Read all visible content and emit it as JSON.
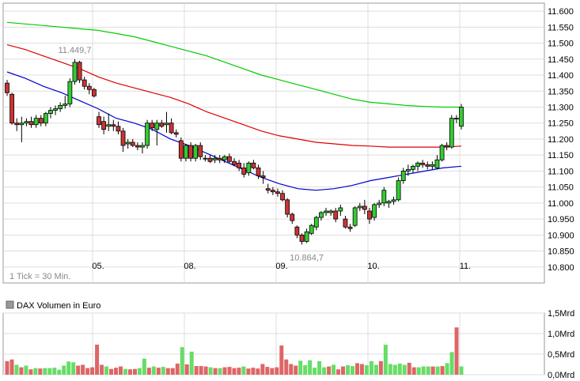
{
  "chart_data": [
    {
      "type": "candlestick",
      "interval_note": "1 Tick = 30 Min.",
      "x_labels": [
        "05.",
        "08.",
        "09.",
        "10.",
        "11."
      ],
      "ylim": [
        10750,
        11625
      ],
      "y_ticks": [
        "11.600",
        "11.550",
        "11.500",
        "11.450",
        "11.400",
        "11.350",
        "11.300",
        "11.250",
        "11.200",
        "11.150",
        "11.100",
        "11.050",
        "11.000",
        "10.950",
        "10.900",
        "10.850",
        "10.800"
      ],
      "y_tick_values": [
        11600,
        11550,
        11500,
        11450,
        11400,
        11350,
        11300,
        11250,
        11200,
        11150,
        11100,
        11050,
        11000,
        10950,
        10900,
        10850,
        10800
      ],
      "grid": true,
      "annotations": [
        {
          "text": "11.449,7",
          "bar": 14,
          "value": 11449.7,
          "position": "above"
        },
        {
          "text": "10.864,7",
          "bar": 62,
          "value": 10864.7,
          "position": "below"
        }
      ],
      "candles": [
        [
          11375,
          11385,
          11335,
          11345
        ],
        [
          11340,
          11345,
          11245,
          11250
        ],
        [
          11250,
          11265,
          11225,
          11245
        ],
        [
          11245,
          11270,
          11190,
          11250
        ],
        [
          11250,
          11265,
          11240,
          11255
        ],
        [
          11255,
          11270,
          11235,
          11245
        ],
        [
          11245,
          11275,
          11235,
          11265
        ],
        [
          11265,
          11275,
          11240,
          11250
        ],
        [
          11250,
          11285,
          11240,
          11280
        ],
        [
          11280,
          11300,
          11265,
          11290
        ],
        [
          11290,
          11305,
          11275,
          11295
        ],
        [
          11295,
          11315,
          11285,
          11305
        ],
        [
          11305,
          11335,
          11295,
          11310
        ],
        [
          11310,
          11390,
          11300,
          11380
        ],
        [
          11380,
          11450,
          11370,
          11440
        ],
        [
          11440,
          11445,
          11375,
          11385
        ],
        [
          11385,
          11395,
          11355,
          11365
        ],
        [
          11365,
          11375,
          11340,
          11355
        ],
        [
          11355,
          11360,
          11330,
          11335
        ],
        [
          11270,
          11285,
          11235,
          11245
        ],
        [
          11255,
          11270,
          11215,
          11230
        ],
        [
          11240,
          11280,
          11225,
          11245
        ],
        [
          11245,
          11260,
          11225,
          11240
        ],
        [
          11240,
          11255,
          11215,
          11225
        ],
        [
          11225,
          11235,
          11160,
          11180
        ],
        [
          11185,
          11200,
          11170,
          11190
        ],
        [
          11190,
          11200,
          11175,
          11180
        ],
        [
          11180,
          11190,
          11165,
          11175
        ],
        [
          11175,
          11190,
          11155,
          11180
        ],
        [
          11180,
          11260,
          11170,
          11250
        ],
        [
          11250,
          11260,
          11225,
          11235
        ],
        [
          11230,
          11260,
          11180,
          11250
        ],
        [
          11250,
          11260,
          11235,
          11240
        ],
        [
          11245,
          11285,
          11220,
          11250
        ],
        [
          11250,
          11265,
          11215,
          11220
        ],
        [
          11220,
          11230,
          11205,
          11215
        ],
        [
          11195,
          11205,
          11130,
          11140
        ],
        [
          11140,
          11185,
          11130,
          11180
        ],
        [
          11180,
          11190,
          11130,
          11140
        ],
        [
          11140,
          11185,
          11130,
          11180
        ],
        [
          11180,
          11190,
          11135,
          11145
        ],
        [
          11140,
          11150,
          11130,
          11140
        ],
        [
          11140,
          11150,
          11125,
          11130
        ],
        [
          11135,
          11150,
          11125,
          11140
        ],
        [
          11140,
          11150,
          11125,
          11135
        ],
        [
          11135,
          11150,
          11125,
          11145
        ],
        [
          11145,
          11155,
          11125,
          11130
        ],
        [
          11130,
          11140,
          11115,
          11120
        ],
        [
          11125,
          11135,
          11100,
          11110
        ],
        [
          11110,
          11125,
          11080,
          11090
        ],
        [
          11095,
          11130,
          11085,
          11125
        ],
        [
          11125,
          11135,
          11105,
          11110
        ],
        [
          11110,
          11120,
          11075,
          11085
        ],
        [
          11085,
          11100,
          11060,
          11080
        ],
        [
          11045,
          11060,
          11030,
          11040
        ],
        [
          11040,
          11050,
          11025,
          11035
        ],
        [
          11035,
          11045,
          11020,
          11030
        ],
        [
          11030,
          11040,
          11005,
          11010
        ],
        [
          11010,
          11015,
          10955,
          10965
        ],
        [
          10965,
          10970,
          10935,
          10945
        ],
        [
          10925,
          10930,
          10890,
          10900
        ],
        [
          10900,
          10905,
          10870,
          10880
        ],
        [
          10880,
          10920,
          10875,
          10910
        ],
        [
          10905,
          10935,
          10900,
          10930
        ],
        [
          10925,
          10960,
          10915,
          10955
        ],
        [
          10955,
          10975,
          10945,
          10970
        ],
        [
          10970,
          10985,
          10960,
          10975
        ],
        [
          10970,
          10980,
          10960,
          10975
        ],
        [
          10975,
          10985,
          10940,
          10950
        ],
        [
          10975,
          10995,
          10960,
          10985
        ],
        [
          10950,
          10960,
          10920,
          10925
        ],
        [
          10925,
          10935,
          10910,
          10920
        ],
        [
          10930,
          10990,
          10925,
          10985
        ],
        [
          10985,
          11000,
          10975,
          10990
        ],
        [
          10990,
          11010,
          10965,
          10980
        ],
        [
          10975,
          10985,
          10935,
          10950
        ],
        [
          10955,
          11000,
          10945,
          10995
        ],
        [
          10995,
          11010,
          10985,
          11000
        ],
        [
          11000,
          11050,
          10990,
          11040
        ],
        [
          11000,
          11010,
          10985,
          11005
        ],
        [
          11005,
          11020,
          10995,
          11010
        ],
        [
          11010,
          11080,
          11005,
          11070
        ],
        [
          11070,
          11110,
          11060,
          11100
        ],
        [
          11100,
          11120,
          11085,
          11105
        ],
        [
          11105,
          11120,
          11095,
          11115
        ],
        [
          11115,
          11130,
          11100,
          11125
        ],
        [
          11125,
          11135,
          11110,
          11120
        ],
        [
          11120,
          11130,
          11105,
          11115
        ],
        [
          11115,
          11130,
          11105,
          11120
        ],
        [
          11110,
          11150,
          11105,
          11135
        ],
        [
          11135,
          11185,
          11130,
          11180
        ],
        [
          11180,
          11190,
          11165,
          11175
        ],
        [
          11175,
          11275,
          11170,
          11265
        ],
        [
          11265,
          11275,
          11250,
          11265
        ],
        [
          11240,
          11310,
          11230,
          11300
        ]
      ],
      "series": [
        {
          "name": "",
          "color": "#00cc00",
          "values": [
            11565,
            11560,
            11555,
            11550,
            11545,
            11540,
            11530,
            11520,
            11505,
            11490,
            11475,
            11460,
            11440,
            11420,
            11400,
            11385,
            11370,
            11355,
            11340,
            11325,
            11315,
            11310,
            11305,
            11302,
            11300,
            11300
          ]
        },
        {
          "name": "",
          "color": "#dd0000",
          "values": [
            11495,
            11480,
            11460,
            11440,
            11420,
            11395,
            11375,
            11360,
            11345,
            11330,
            11310,
            11285,
            11265,
            11245,
            11225,
            11210,
            11200,
            11190,
            11185,
            11180,
            11178,
            11175,
            11175,
            11175,
            11175,
            11178
          ]
        },
        {
          "name": "",
          "color": "#0000cc",
          "values": [
            11410,
            11390,
            11365,
            11345,
            11320,
            11295,
            11265,
            11250,
            11230,
            11200,
            11180,
            11155,
            11130,
            11105,
            11080,
            11060,
            11045,
            11040,
            11045,
            11055,
            11070,
            11080,
            11090,
            11100,
            11110,
            11115
          ]
        }
      ]
    },
    {
      "type": "bar",
      "title": "DAX Volumen in Euro",
      "ylim": [
        0,
        1.5
      ],
      "y_ticks": [
        "1,5Mrd",
        "1,0Mrd",
        "0,5Mrd",
        "0,0Mrd"
      ],
      "y_tick_values": [
        1.5,
        1.0,
        0.5,
        0.0
      ],
      "up_color": "#66dd66",
      "down_color": "#dd6666",
      "values": [
        0.33,
        0.37,
        0.24,
        0.18,
        0.22,
        0.13,
        0.16,
        0.15,
        0.16,
        0.16,
        0.17,
        0.12,
        0.22,
        0.32,
        0.3,
        0.22,
        0.24,
        0.16,
        0.18,
        0.73,
        0.24,
        0.2,
        0.14,
        0.17,
        0.2,
        0.14,
        0.13,
        0.14,
        0.16,
        0.39,
        0.17,
        0.2,
        0.17,
        0.19,
        0.16,
        0.16,
        0.27,
        0.67,
        0.25,
        0.56,
        0.21,
        0.21,
        0.2,
        0.18,
        0.16,
        0.16,
        0.18,
        0.19,
        0.16,
        0.17,
        0.2,
        0.15,
        0.17,
        0.15,
        0.26,
        0.19,
        0.16,
        0.18,
        0.71,
        0.37,
        0.26,
        0.22,
        0.34,
        0.23,
        0.35,
        0.17,
        0.33,
        0.18,
        0.2,
        0.24,
        0.13,
        0.2,
        0.23,
        0.21,
        0.28,
        0.26,
        0.23,
        0.33,
        0.24,
        0.33,
        0.73,
        0.26,
        0.24,
        0.27,
        0.24,
        0.29,
        0.18,
        0.18,
        0.2,
        0.2,
        0.2,
        0.2,
        0.21,
        0.28,
        0.55,
        1.15,
        0.2
      ],
      "down": [
        1,
        1,
        0,
        1,
        0,
        1,
        0,
        1,
        0,
        0,
        0,
        0,
        0,
        0,
        0,
        1,
        1,
        1,
        1,
        1,
        1,
        0,
        1,
        1,
        1,
        0,
        1,
        1,
        0,
        0,
        1,
        0,
        1,
        0,
        1,
        1,
        1,
        0,
        1,
        0,
        1,
        1,
        1,
        0,
        1,
        0,
        1,
        1,
        1,
        1,
        0,
        1,
        1,
        1,
        1,
        1,
        1,
        1,
        1,
        1,
        1,
        1,
        0,
        0,
        0,
        0,
        0,
        0,
        1,
        0,
        1,
        1,
        0,
        0,
        1,
        1,
        0,
        0,
        0,
        1,
        0,
        0,
        0,
        0,
        0,
        1,
        1,
        0,
        0,
        0,
        1,
        0,
        1,
        0,
        0,
        1,
        0
      ]
    }
  ]
}
